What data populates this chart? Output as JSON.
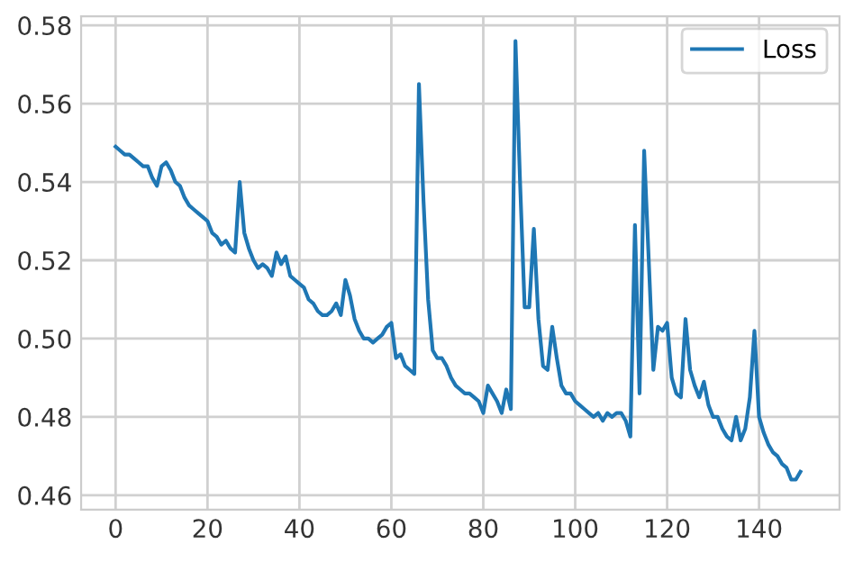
{
  "chart_data": {
    "type": "line",
    "x": [
      0,
      1,
      2,
      3,
      4,
      5,
      6,
      7,
      8,
      9,
      10,
      11,
      12,
      13,
      14,
      15,
      16,
      17,
      18,
      19,
      20,
      21,
      22,
      23,
      24,
      25,
      26,
      27,
      28,
      29,
      30,
      31,
      32,
      33,
      34,
      35,
      36,
      37,
      38,
      39,
      40,
      41,
      42,
      43,
      44,
      45,
      46,
      47,
      48,
      49,
      50,
      51,
      52,
      53,
      54,
      55,
      56,
      57,
      58,
      59,
      60,
      61,
      62,
      63,
      64,
      65,
      66,
      67,
      68,
      69,
      70,
      71,
      72,
      73,
      74,
      75,
      76,
      77,
      78,
      79,
      80,
      81,
      82,
      83,
      84,
      85,
      86,
      87,
      88,
      89,
      90,
      91,
      92,
      93,
      94,
      95,
      96,
      97,
      98,
      99,
      100,
      101,
      102,
      103,
      104,
      105,
      106,
      107,
      108,
      109,
      110,
      111,
      112,
      113,
      114,
      115,
      116,
      117,
      118,
      119,
      120,
      121,
      122,
      123,
      124,
      125,
      126,
      127,
      128,
      129,
      130,
      131,
      132,
      133,
      134,
      135,
      136,
      137,
      138,
      139,
      140,
      141,
      142,
      143,
      144,
      145,
      146,
      147,
      148,
      149
    ],
    "series": [
      {
        "name": "Loss",
        "color": "#1f77b4",
        "values": [
          0.549,
          0.548,
          0.547,
          0.547,
          0.546,
          0.545,
          0.544,
          0.544,
          0.541,
          0.539,
          0.544,
          0.545,
          0.543,
          0.54,
          0.539,
          0.536,
          0.534,
          0.533,
          0.532,
          0.531,
          0.53,
          0.527,
          0.526,
          0.524,
          0.525,
          0.523,
          0.522,
          0.54,
          0.527,
          0.523,
          0.52,
          0.518,
          0.519,
          0.518,
          0.516,
          0.522,
          0.519,
          0.521,
          0.516,
          0.515,
          0.514,
          0.513,
          0.51,
          0.509,
          0.507,
          0.506,
          0.506,
          0.507,
          0.509,
          0.506,
          0.515,
          0.511,
          0.505,
          0.502,
          0.5,
          0.5,
          0.499,
          0.5,
          0.501,
          0.503,
          0.504,
          0.495,
          0.496,
          0.493,
          0.492,
          0.491,
          0.565,
          0.535,
          0.51,
          0.497,
          0.495,
          0.495,
          0.493,
          0.49,
          0.488,
          0.487,
          0.486,
          0.486,
          0.485,
          0.484,
          0.481,
          0.488,
          0.486,
          0.484,
          0.481,
          0.487,
          0.482,
          0.576,
          0.54,
          0.508,
          0.508,
          0.528,
          0.505,
          0.493,
          0.492,
          0.503,
          0.495,
          0.488,
          0.486,
          0.486,
          0.484,
          0.483,
          0.482,
          0.481,
          0.48,
          0.481,
          0.479,
          0.481,
          0.48,
          0.481,
          0.481,
          0.479,
          0.475,
          0.529,
          0.486,
          0.548,
          0.52,
          0.492,
          0.503,
          0.502,
          0.504,
          0.49,
          0.486,
          0.485,
          0.505,
          0.492,
          0.488,
          0.485,
          0.489,
          0.483,
          0.48,
          0.48,
          0.477,
          0.475,
          0.474,
          0.48,
          0.474,
          0.477,
          0.485,
          0.502,
          0.48,
          0.476,
          0.473,
          0.471,
          0.47,
          0.468,
          0.467,
          0.464,
          0.464,
          0.466
        ]
      }
    ],
    "xlim": [
      -7.5,
      157.5
    ],
    "ylim": [
      0.4563,
      0.5823
    ],
    "xticks": [
      0,
      20,
      40,
      60,
      80,
      100,
      120,
      140
    ],
    "yticks": [
      0.46,
      0.48,
      {
        "value": 0.5,
        "label": "0.50"
      },
      0.52,
      0.54,
      0.56,
      0.58
    ],
    "grid": true,
    "legend": "top right"
  }
}
